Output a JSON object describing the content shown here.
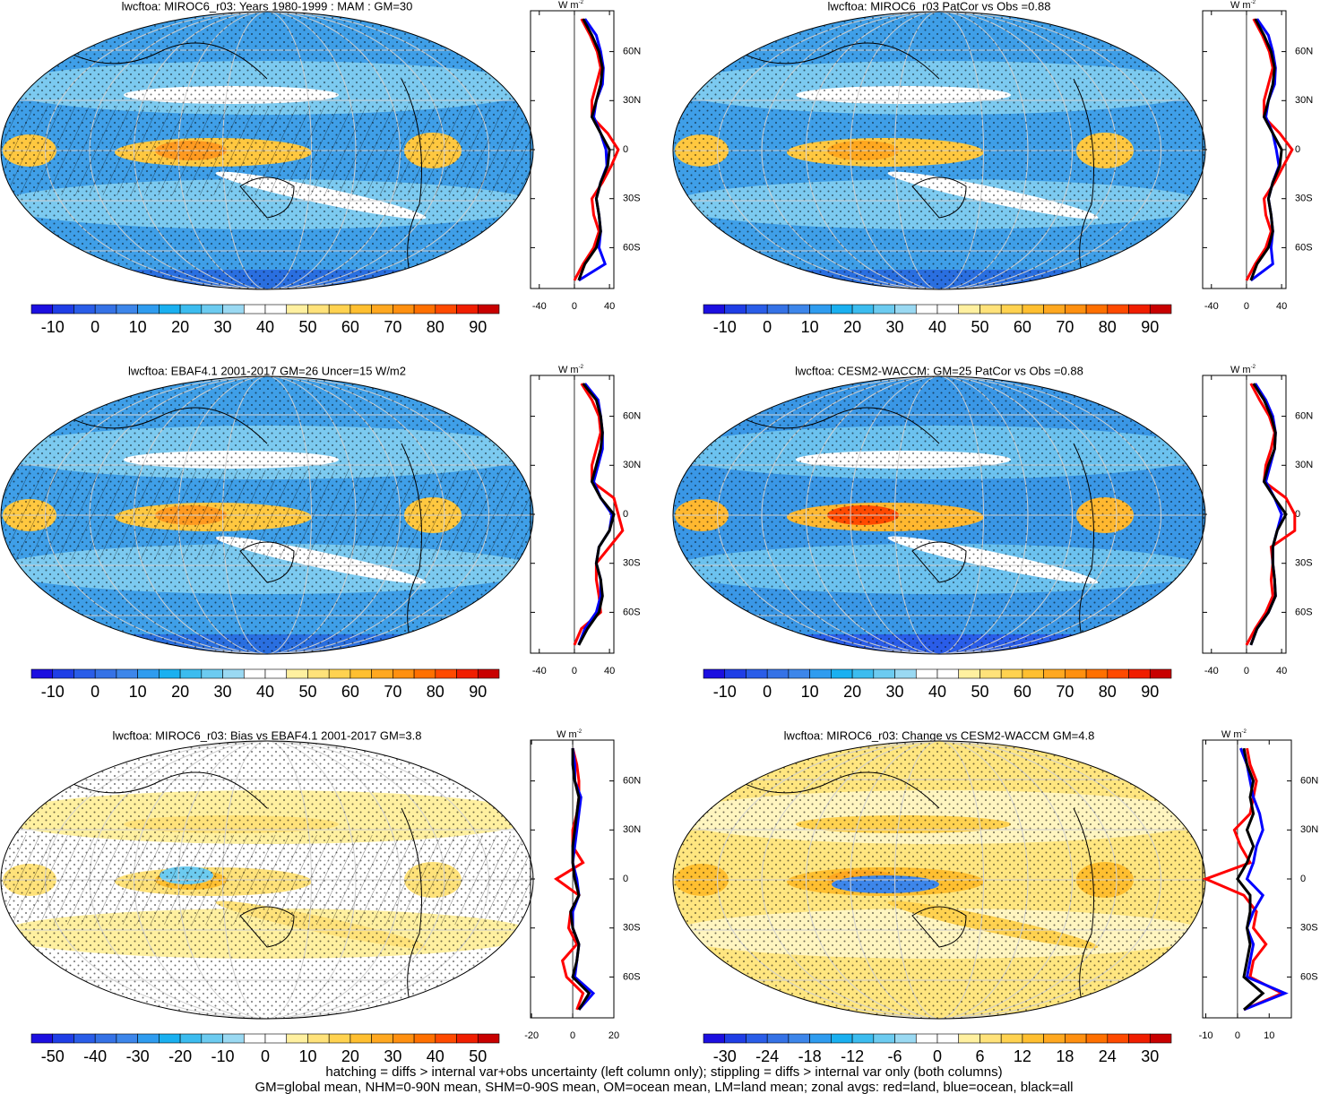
{
  "colormap": [
    "#1c0fe0",
    "#1f3ee6",
    "#2a5de8",
    "#3572e6",
    "#3d86ea",
    "#2f9cef",
    "#1ab0f0",
    "#3cbcef",
    "#6ccbf0",
    "#9ad9f2",
    "#ffffff",
    "#ffffff",
    "#fff0a0",
    "#ffe27a",
    "#ffd250",
    "#ffbf30",
    "#ffa820",
    "#ff9010",
    "#ff7000",
    "#ff4a00",
    "#f01e00",
    "#c80000"
  ],
  "chart_data": [
    {
      "type": "zonal-map",
      "title": "lwcftoa: MIROC6_r03: Years 1980-1999 : MAM : GM=30",
      "colorbar": {
        "lim": [
          -15,
          95
        ],
        "ticks": [
          -10,
          0,
          10,
          20,
          30,
          40,
          50,
          60,
          70,
          80,
          90
        ]
      },
      "zonal": {
        "unit": "W m",
        "unit_sup": "-2",
        "xlim": [
          -50,
          45
        ],
        "xticks": [
          -40,
          0,
          40
        ],
        "ylim": [
          -85,
          85
        ],
        "yticks": [
          {
            "value": 60,
            "label": "60N"
          },
          {
            "value": 30,
            "label": "30N"
          },
          0,
          {
            "value": -30,
            "label": "30S"
          },
          {
            "value": -60,
            "label": "60S"
          }
        ],
        "lat": [
          -80,
          -70,
          -60,
          -50,
          -40,
          -30,
          -20,
          -10,
          0,
          10,
          20,
          30,
          40,
          50,
          60,
          70,
          80
        ],
        "series": [
          {
            "name": "land",
            "color": "#ff0000",
            "values": [
              0,
              10,
              22,
              28,
              22,
              20,
              32,
              42,
              50,
              38,
              20,
              20,
              25,
              30,
              26,
              18,
              8
            ]
          },
          {
            "name": "ocean",
            "color": "#0000ff",
            "values": [
              5,
              35,
              28,
              30,
              28,
              25,
              30,
              37,
              36,
              30,
              22,
              25,
              32,
              33,
              30,
              25,
              12
            ]
          },
          {
            "name": "all",
            "color": "#000000",
            "values": [
              5,
              12,
              25,
              30,
              28,
              25,
              30,
              38,
              40,
              30,
              20,
              25,
              30,
              32,
              28,
              20,
              10
            ]
          }
        ]
      }
    },
    {
      "type": "zonal-map",
      "title": "lwcftoa: MIROC6_r03 PatCor vs Obs =0.88",
      "colorbar": {
        "lim": [
          -15,
          95
        ],
        "ticks": [
          -10,
          0,
          10,
          20,
          30,
          40,
          50,
          60,
          70,
          80,
          90
        ]
      },
      "zonal": {
        "unit": "W m",
        "unit_sup": "-2",
        "xlim": [
          -50,
          45
        ],
        "xticks": [
          -40,
          0,
          40
        ],
        "ylim": [
          -85,
          85
        ],
        "yticks": [
          {
            "value": 60,
            "label": "60N"
          },
          {
            "value": 30,
            "label": "30N"
          },
          0,
          {
            "value": -30,
            "label": "30S"
          },
          {
            "value": -60,
            "label": "60S"
          }
        ],
        "lat": [
          -80,
          -70,
          -60,
          -50,
          -40,
          -30,
          -20,
          -10,
          0,
          10,
          20,
          30,
          40,
          50,
          60,
          70,
          80
        ],
        "series": [
          {
            "name": "land",
            "color": "#ff0000",
            "values": [
              0,
              10,
              22,
              28,
              22,
              20,
              32,
              42,
              52,
              38,
              20,
              20,
              25,
              30,
              26,
              18,
              8
            ]
          },
          {
            "name": "ocean",
            "color": "#0000ff",
            "values": [
              5,
              30,
              28,
              30,
              28,
              25,
              30,
              37,
              34,
              30,
              22,
              25,
              32,
              33,
              30,
              25,
              12
            ]
          },
          {
            "name": "all",
            "color": "#000000",
            "values": [
              5,
              12,
              25,
              30,
              28,
              25,
              30,
              38,
              40,
              30,
              20,
              25,
              30,
              32,
              28,
              20,
              10
            ]
          }
        ]
      }
    },
    {
      "type": "zonal-map",
      "title": "lwcftoa: EBAF4.1 2001-2017 GM=26 Uncer=15 W/m2",
      "colorbar": {
        "lim": [
          -15,
          95
        ],
        "ticks": [
          -10,
          0,
          10,
          20,
          30,
          40,
          50,
          60,
          70,
          80,
          90
        ]
      },
      "zonal": {
        "unit": "W m",
        "unit_sup": "-2",
        "xlim": [
          -50,
          45
        ],
        "xticks": [
          -40,
          0,
          40
        ],
        "ylim": [
          -85,
          85
        ],
        "yticks": [
          {
            "value": 60,
            "label": "60N"
          },
          {
            "value": 30,
            "label": "30N"
          },
          0,
          {
            "value": -30,
            "label": "30S"
          },
          {
            "value": -60,
            "label": "60S"
          }
        ],
        "lat": [
          -80,
          -70,
          -60,
          -50,
          -40,
          -30,
          -20,
          -10,
          0,
          10,
          20,
          30,
          40,
          50,
          60,
          70,
          80
        ],
        "series": [
          {
            "name": "land",
            "color": "#ff0000",
            "values": [
              0,
              8,
              30,
              28,
              25,
              25,
              40,
              55,
              50,
              45,
              20,
              20,
              25,
              30,
              28,
              20,
              8
            ]
          },
          {
            "name": "ocean",
            "color": "#0000ff",
            "values": [
              5,
              12,
              25,
              30,
              30,
              25,
              28,
              40,
              43,
              30,
              22,
              27,
              32,
              32,
              30,
              27,
              12
            ]
          },
          {
            "name": "all",
            "color": "#000000",
            "values": [
              5,
              15,
              28,
              32,
              30,
              25,
              28,
              40,
              45,
              30,
              20,
              25,
              30,
              32,
              30,
              25,
              10
            ]
          }
        ]
      }
    },
    {
      "type": "zonal-map",
      "title": "lwcftoa: CESM2-WACCM: GM=25 PatCor vs Obs =0.88",
      "colorbar": {
        "lim": [
          -15,
          95
        ],
        "ticks": [
          -10,
          0,
          10,
          20,
          30,
          40,
          50,
          60,
          70,
          80,
          90
        ]
      },
      "zonal": {
        "unit": "W m",
        "unit_sup": "-2",
        "xlim": [
          -50,
          45
        ],
        "xticks": [
          -40,
          0,
          40
        ],
        "ylim": [
          -85,
          85
        ],
        "yticks": [
          {
            "value": 60,
            "label": "60N"
          },
          {
            "value": 30,
            "label": "30N"
          },
          0,
          {
            "value": -30,
            "label": "30S"
          },
          {
            "value": -60,
            "label": "60S"
          }
        ],
        "lat": [
          -80,
          -70,
          -60,
          -50,
          -40,
          -30,
          -20,
          -10,
          0,
          10,
          20,
          30,
          40,
          50,
          60,
          70,
          80
        ],
        "series": [
          {
            "name": "land",
            "color": "#ff0000",
            "values": [
              0,
              10,
              22,
              30,
              28,
              30,
              28,
              55,
              55,
              45,
              20,
              22,
              28,
              32,
              26,
              15,
              5
            ]
          },
          {
            "name": "ocean",
            "color": "#0000ff",
            "values": [
              5,
              12,
              25,
              33,
              32,
              30,
              30,
              35,
              40,
              32,
              22,
              27,
              32,
              33,
              30,
              22,
              10
            ]
          },
          {
            "name": "all",
            "color": "#000000",
            "values": [
              5,
              12,
              25,
              33,
              32,
              30,
              30,
              35,
              45,
              32,
              20,
              25,
              32,
              33,
              28,
              20,
              8
            ]
          }
        ]
      }
    },
    {
      "type": "zonal-map",
      "title": "lwcftoa: MIROC6_r03: Bias vs EBAF4.1 2001-2017 GM=3.8",
      "colorbar": {
        "lim": [
          -55,
          55
        ],
        "ticks": [
          -50,
          -40,
          -30,
          -20,
          -10,
          0,
          10,
          20,
          30,
          40,
          50
        ]
      },
      "zonal": {
        "unit": "W m",
        "unit_sup": "-2",
        "xlim": [
          -20.5,
          20
        ],
        "xticks": [
          -20,
          0,
          20
        ],
        "ylim": [
          -85,
          85
        ],
        "yticks": [
          {
            "value": 60,
            "label": "60N"
          },
          {
            "value": 30,
            "label": "30N"
          },
          0,
          {
            "value": -30,
            "label": "30S"
          },
          {
            "value": -60,
            "label": "60S"
          }
        ],
        "lat": [
          -80,
          -70,
          -60,
          -50,
          -40,
          -30,
          -20,
          -10,
          0,
          10,
          20,
          30,
          40,
          50,
          60,
          70,
          80
        ],
        "series": [
          {
            "name": "land",
            "color": "#ff0000",
            "values": [
              2,
              5,
              -3,
              -5,
              2,
              -2,
              -1,
              3,
              -8,
              5,
              0,
              0,
              2,
              3,
              3,
              2,
              0
            ]
          },
          {
            "name": "ocean",
            "color": "#0000ff",
            "values": [
              3,
              10,
              1,
              2,
              3,
              0,
              0,
              3,
              2,
              0,
              1,
              2,
              3,
              4,
              1,
              1,
              0
            ]
          },
          {
            "name": "all",
            "color": "#000000",
            "values": [
              3,
              8,
              0,
              2,
              3,
              0,
              -1,
              3,
              1,
              0,
              0,
              1,
              2,
              3,
              1,
              0,
              0
            ]
          }
        ]
      }
    },
    {
      "type": "zonal-map",
      "title": "lwcftoa: MIROC6_r03: Change vs CESM2-WACCM GM=4.8",
      "colorbar": {
        "lim": [
          -33,
          33
        ],
        "ticks": [
          -30,
          -24,
          -18,
          -12,
          -6,
          0,
          6,
          12,
          18,
          24,
          30
        ]
      },
      "zonal": {
        "unit": "W m",
        "unit_sup": "-2",
        "xlim": [
          -11,
          17
        ],
        "xticks": [
          -10,
          0,
          10
        ],
        "ylim": [
          -85,
          85
        ],
        "yticks": [
          {
            "value": 60,
            "label": "60N"
          },
          {
            "value": 30,
            "label": "30N"
          },
          0,
          {
            "value": -30,
            "label": "30S"
          },
          {
            "value": -60,
            "label": "60S"
          }
        ],
        "lat": [
          -80,
          -70,
          -60,
          -50,
          -40,
          -30,
          -20,
          -10,
          0,
          10,
          20,
          30,
          40,
          50,
          60,
          70,
          80
        ],
        "series": [
          {
            "name": "land",
            "color": "#ff0000",
            "values": [
              2,
              14,
              4,
              5,
              9,
              5,
              6,
              2,
              -10,
              4,
              1,
              -1,
              4,
              5,
              6,
              4,
              3
            ]
          },
          {
            "name": "ocean",
            "color": "#0000ff",
            "values": [
              2,
              15,
              3,
              4,
              5,
              3,
              5,
              8,
              3,
              5,
              6,
              8,
              7,
              5,
              4,
              3,
              1
            ]
          },
          {
            "name": "all",
            "color": "#000000",
            "values": [
              2,
              8,
              2,
              3,
              4,
              3,
              4,
              4,
              0,
              3,
              5,
              3,
              5,
              4,
              5,
              3,
              2
            ]
          }
        ]
      }
    }
  ],
  "footer": [
    "hatching = diffs > internal var+obs uncertainty (left column only); stippling = diffs > internal var only (both columns)",
    "GM=global mean, NHM=0-90N mean, SHM=0-90S mean, OM=ocean mean, LM=land mean; zonal avgs: red=land, blue=ocean, black=all"
  ]
}
